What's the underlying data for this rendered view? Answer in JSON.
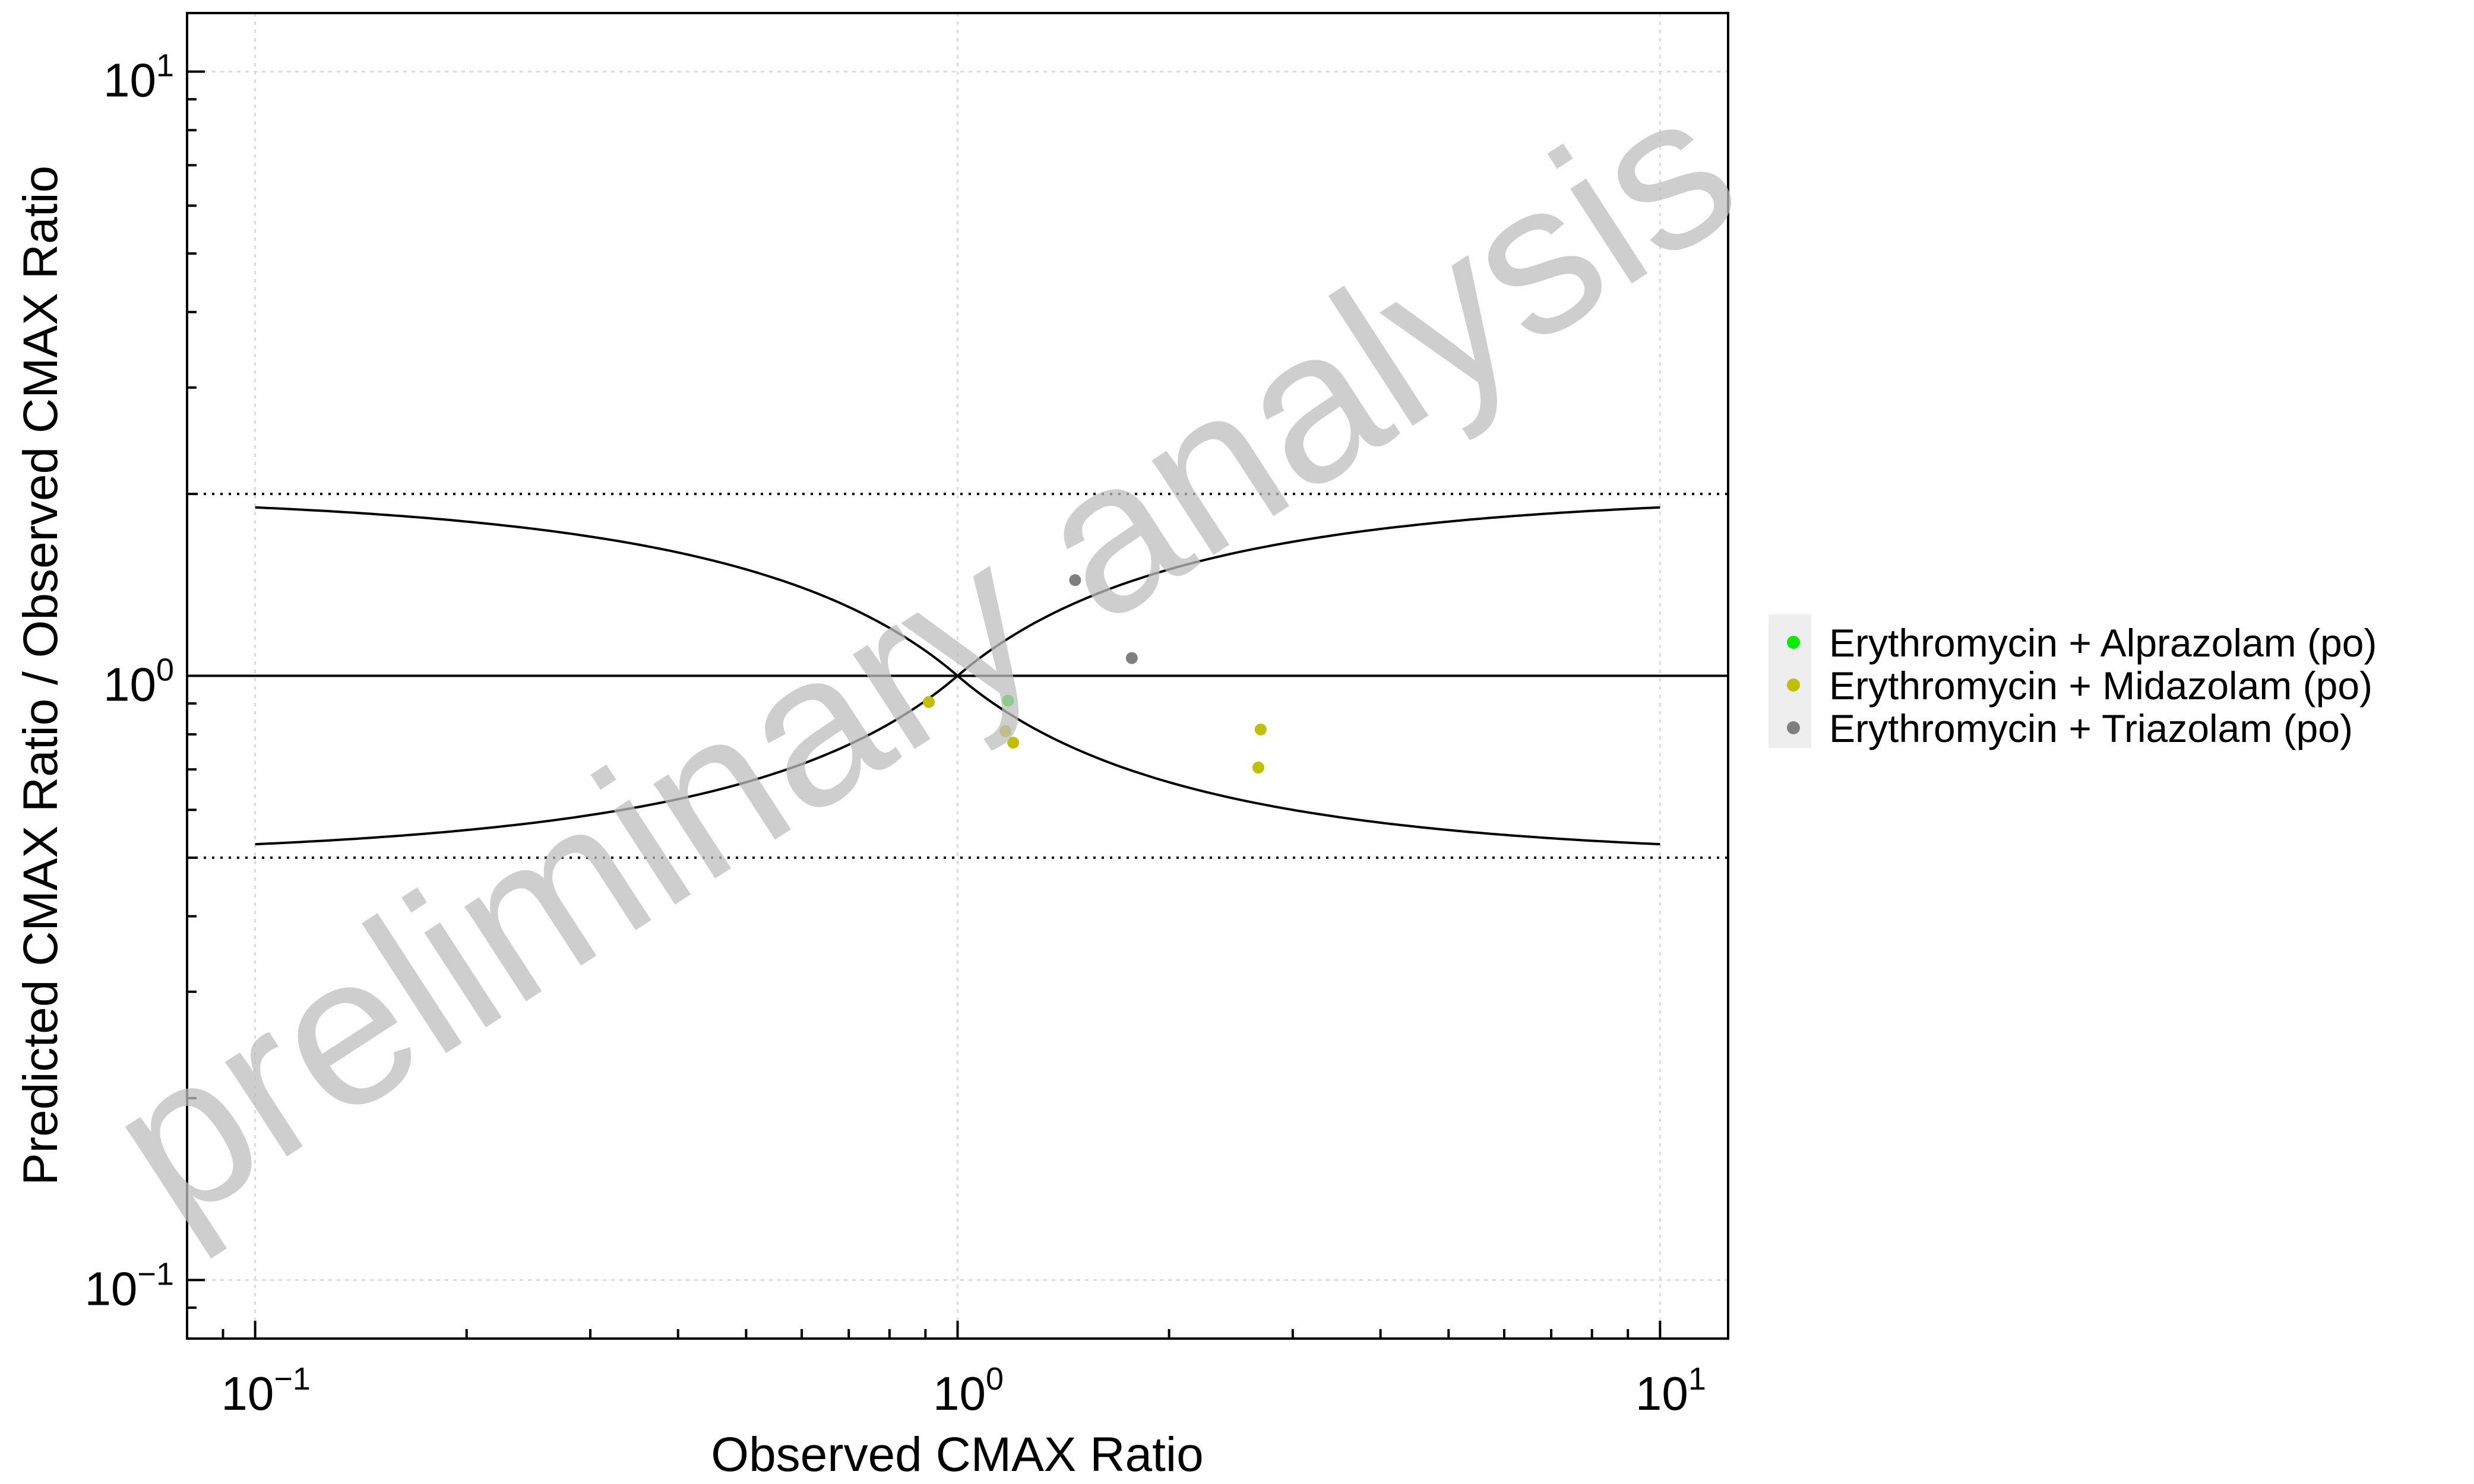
{
  "chart_data": {
    "type": "scatter",
    "xlabel": "Observed CMAX Ratio",
    "ylabel": "Predicted CMAX Ratio / Observed CMAX Ratio",
    "x_scale": "log",
    "y_scale": "log",
    "xlim": [
      0.08,
      12.5
    ],
    "ylim": [
      0.08,
      12.5
    ],
    "x_ticks": [
      {
        "base": "10",
        "exp": "−1",
        "value": 0.1
      },
      {
        "base": "10",
        "exp": "0",
        "value": 1
      },
      {
        "base": "10",
        "exp": "1",
        "value": 10
      }
    ],
    "y_ticks": [
      {
        "base": "10",
        "exp": "−1",
        "value": 0.1
      },
      {
        "base": "10",
        "exp": "0",
        "value": 1
      },
      {
        "base": "10",
        "exp": "1",
        "value": 10
      }
    ],
    "grid": true,
    "legend_position": "right",
    "watermark": "preliminary analysis",
    "reference_lines": {
      "identity": 1,
      "bounds_dotted": [
        0.5,
        2
      ],
      "guest_limits_delta": 1
    },
    "series": [
      {
        "name": "Erythromycin + Alprazolam (po)",
        "color": "#00ee00",
        "points": [
          {
            "x": 1.18,
            "y": 0.91
          }
        ]
      },
      {
        "name": "Erythromycin + Midazolam (po)",
        "color": "#c0c000",
        "points": [
          {
            "x": 0.91,
            "y": 0.905
          },
          {
            "x": 1.17,
            "y": 0.81
          },
          {
            "x": 1.2,
            "y": 0.775
          },
          {
            "x": 2.7,
            "y": 0.815
          },
          {
            "x": 2.68,
            "y": 0.705
          }
        ]
      },
      {
        "name": "Erythromycin + Triazolam (po)",
        "color": "#7f7f7f",
        "points": [
          {
            "x": 1.47,
            "y": 1.44
          },
          {
            "x": 1.77,
            "y": 1.07
          }
        ]
      }
    ]
  }
}
